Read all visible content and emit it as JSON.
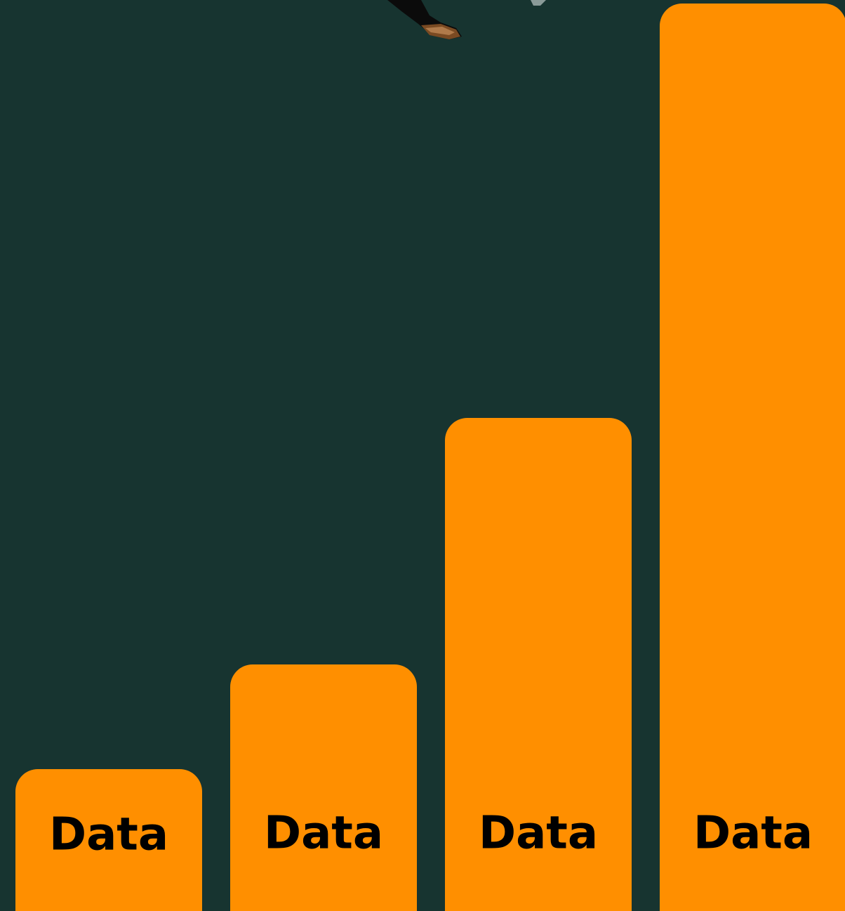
{
  "bars": [
    {
      "label": "Data"
    },
    {
      "label": "Data"
    },
    {
      "label": "Data"
    },
    {
      "label": "Data"
    }
  ]
}
